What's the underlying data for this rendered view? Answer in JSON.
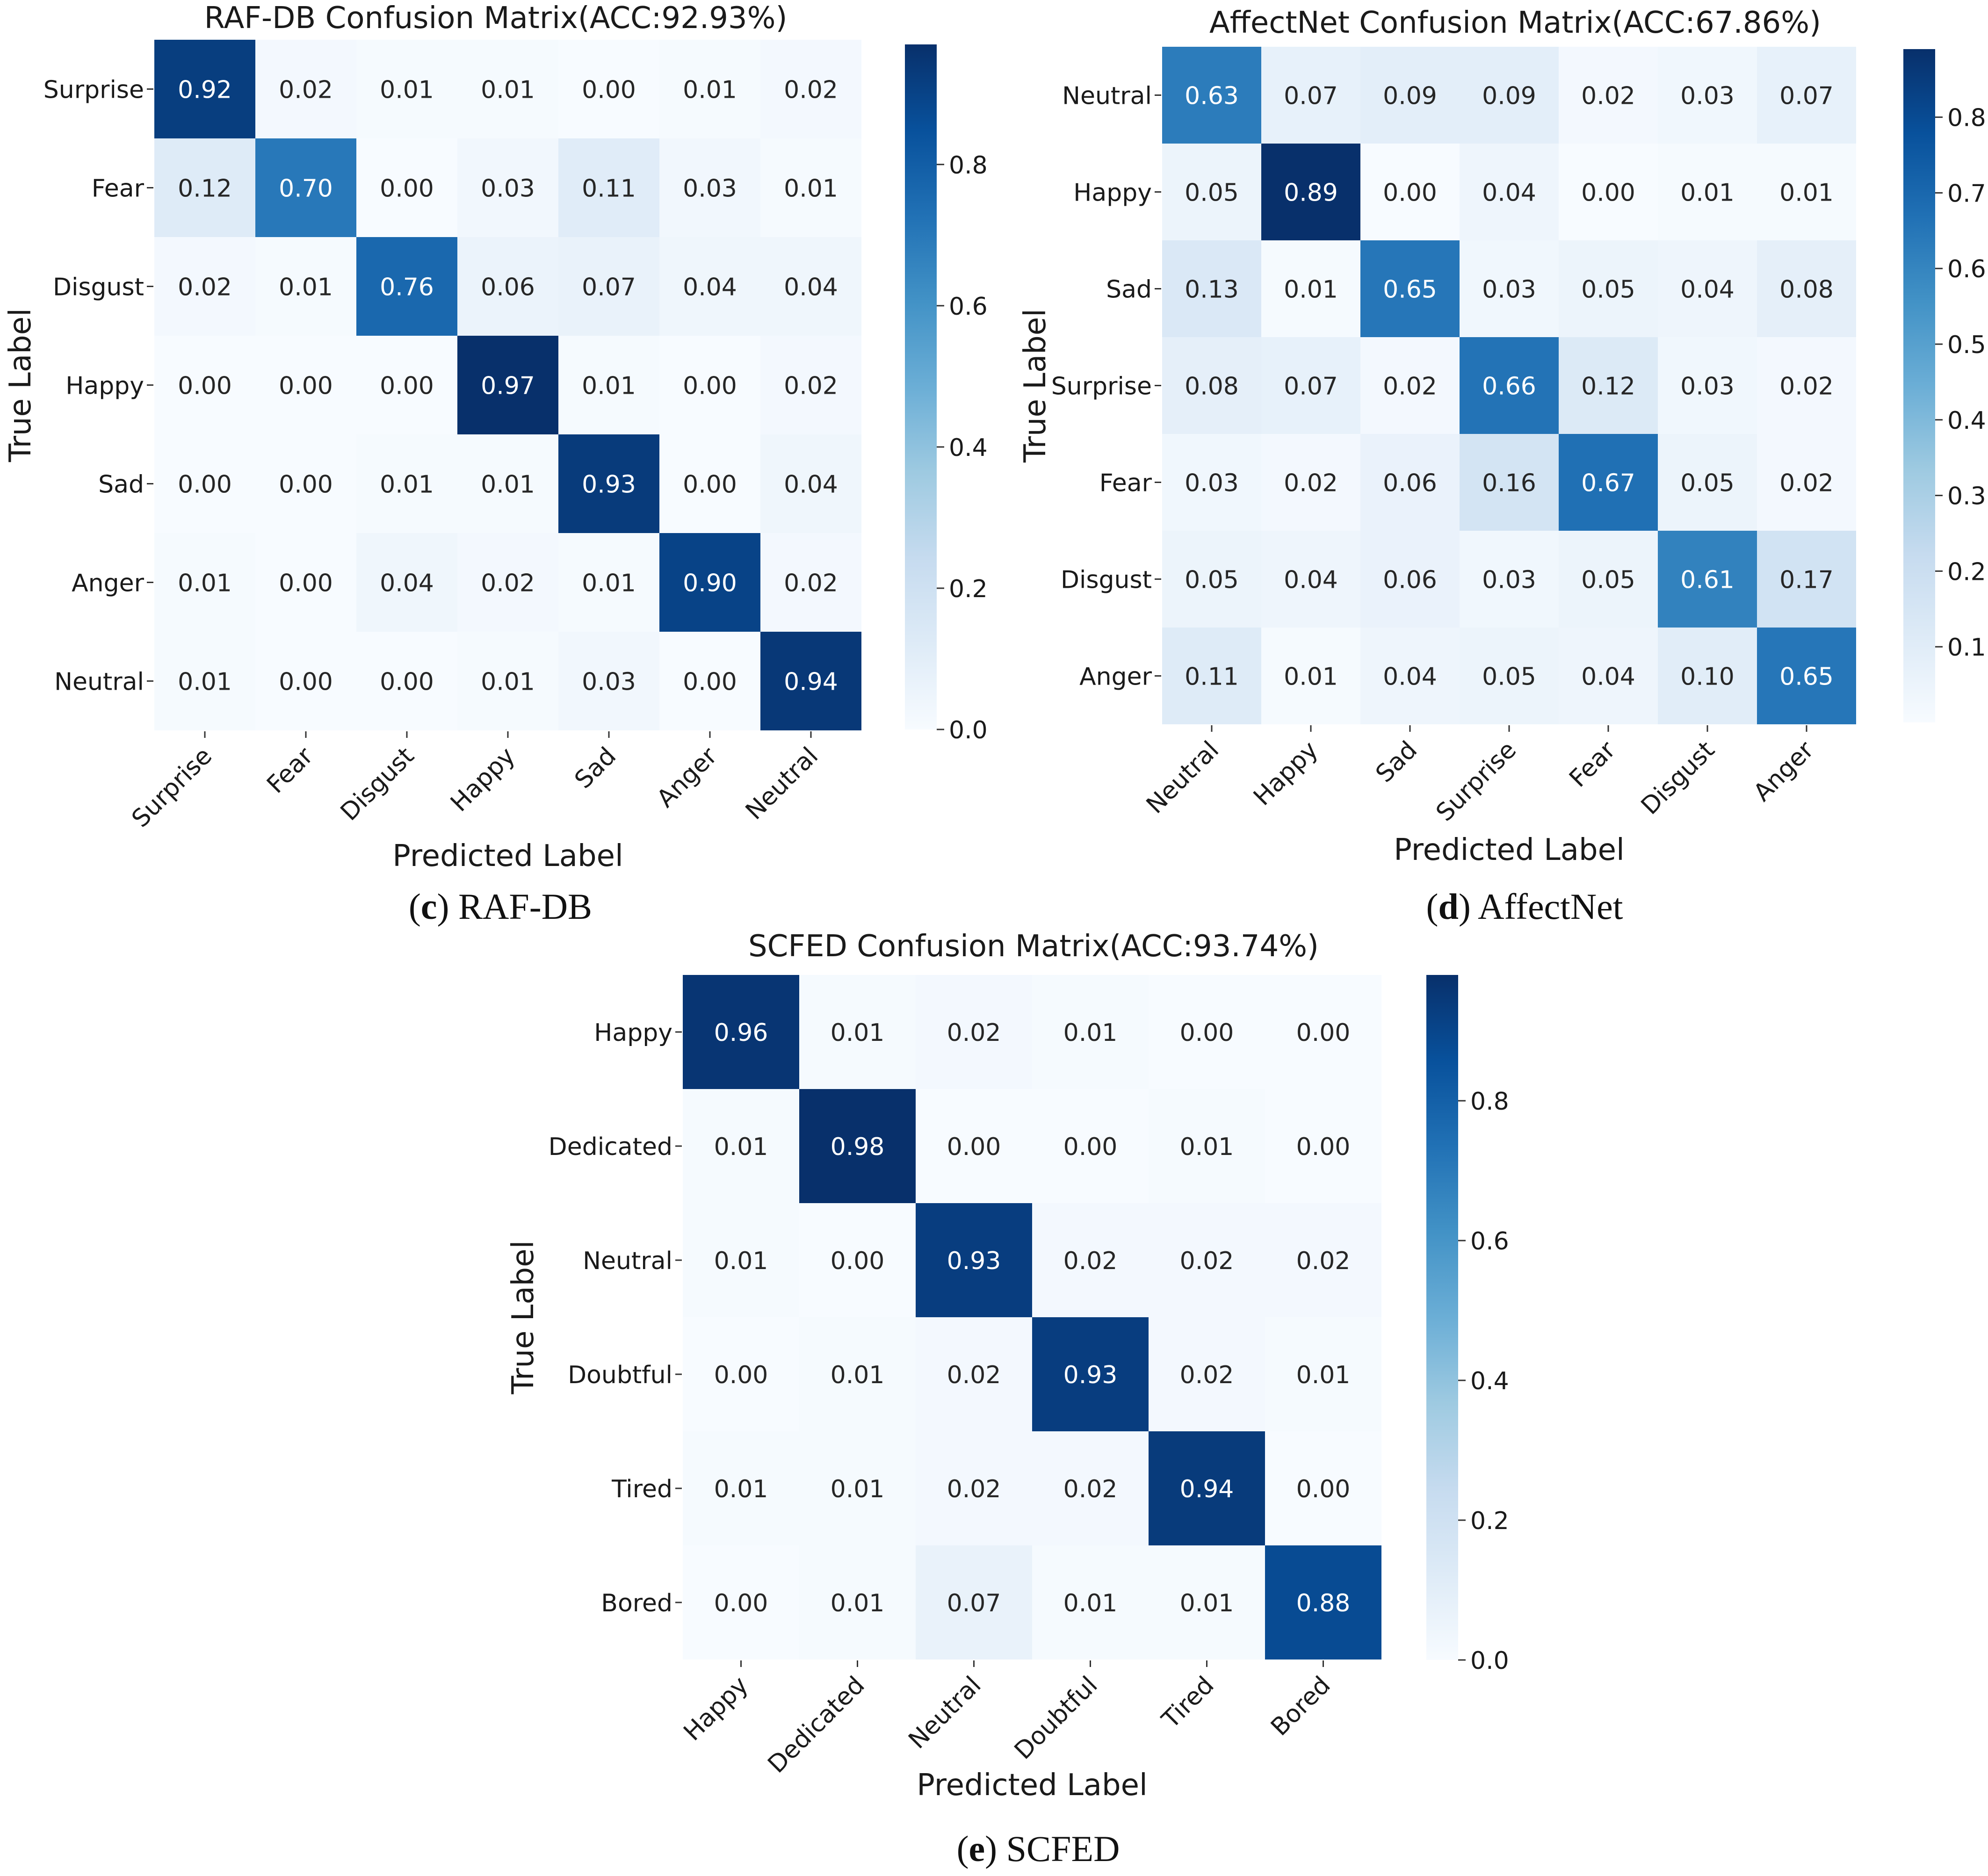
{
  "chart_data": [
    {
      "type": "heatmap",
      "title": "RAF-DB Confusion Matrix(ACC:92.93%)",
      "xlabel": "Predicted Label",
      "ylabel": "True Label",
      "caption_letter": "c",
      "caption_text": " RAF-DB",
      "x_categories": [
        "Surprise",
        "Fear",
        "Disgust",
        "Happy",
        "Sad",
        "Anger",
        "Neutral"
      ],
      "y_categories": [
        "Surprise",
        "Fear",
        "Disgust",
        "Happy",
        "Sad",
        "Anger",
        "Neutral"
      ],
      "values": [
        [
          0.92,
          0.02,
          0.01,
          0.01,
          0.0,
          0.01,
          0.02
        ],
        [
          0.12,
          0.7,
          0.0,
          0.03,
          0.11,
          0.03,
          0.01
        ],
        [
          0.02,
          0.01,
          0.76,
          0.06,
          0.07,
          0.04,
          0.04
        ],
        [
          0.0,
          0.0,
          0.0,
          0.97,
          0.01,
          0.0,
          0.02
        ],
        [
          0.0,
          0.0,
          0.01,
          0.01,
          0.93,
          0.0,
          0.04
        ],
        [
          0.01,
          0.0,
          0.04,
          0.02,
          0.01,
          0.9,
          0.02
        ],
        [
          0.01,
          0.0,
          0.0,
          0.01,
          0.03,
          0.0,
          0.94
        ]
      ],
      "colorbar": {
        "range": [
          0.0,
          0.97
        ],
        "ticks": [
          0.0,
          0.2,
          0.4,
          0.6,
          0.8
        ],
        "tick_labels": [
          "0.0",
          "0.2",
          "0.4",
          "0.6",
          "0.8"
        ]
      },
      "colormap": "Blues"
    },
    {
      "type": "heatmap",
      "title": "AffectNet Confusion Matrix(ACC:67.86%)",
      "xlabel": "Predicted Label",
      "ylabel": "True Label",
      "caption_letter": "d",
      "caption_text": " AffectNet",
      "x_categories": [
        "Neutral",
        "Happy",
        "Sad",
        "Surprise",
        "Fear",
        "Disgust",
        "Anger"
      ],
      "y_categories": [
        "Neutral",
        "Happy",
        "Sad",
        "Surprise",
        "Fear",
        "Disgust",
        "Anger"
      ],
      "values": [
        [
          0.63,
          0.07,
          0.09,
          0.09,
          0.02,
          0.03,
          0.07
        ],
        [
          0.05,
          0.89,
          0.0,
          0.04,
          0.0,
          0.01,
          0.01
        ],
        [
          0.13,
          0.01,
          0.65,
          0.03,
          0.05,
          0.04,
          0.08
        ],
        [
          0.08,
          0.07,
          0.02,
          0.66,
          0.12,
          0.03,
          0.02
        ],
        [
          0.03,
          0.02,
          0.06,
          0.16,
          0.67,
          0.05,
          0.02
        ],
        [
          0.05,
          0.04,
          0.06,
          0.03,
          0.05,
          0.61,
          0.17
        ],
        [
          0.11,
          0.01,
          0.04,
          0.05,
          0.04,
          0.1,
          0.65
        ]
      ],
      "colorbar": {
        "range": [
          0.0,
          0.89
        ],
        "ticks": [
          0.1,
          0.2,
          0.3,
          0.4,
          0.5,
          0.6,
          0.7,
          0.8
        ],
        "tick_labels": [
          "0.1",
          "0.2",
          "0.3",
          "0.4",
          "0.5",
          "0.6",
          "0.7",
          "0.8"
        ]
      },
      "colormap": "Blues"
    },
    {
      "type": "heatmap",
      "title": "SCFED Confusion Matrix(ACC:93.74%)",
      "xlabel": "Predicted Label",
      "ylabel": "True Label",
      "caption_letter": "e",
      "caption_text": " SCFED",
      "x_categories": [
        "Happy",
        "Dedicated",
        "Neutral",
        "Doubtful",
        "Tired",
        "Bored"
      ],
      "y_categories": [
        "Happy",
        "Dedicated",
        "Neutral",
        "Doubtful",
        "Tired",
        "Bored"
      ],
      "values": [
        [
          0.96,
          0.01,
          0.02,
          0.01,
          0.0,
          0.0
        ],
        [
          0.01,
          0.98,
          0.0,
          0.0,
          0.01,
          0.0
        ],
        [
          0.01,
          0.0,
          0.93,
          0.02,
          0.02,
          0.02
        ],
        [
          0.0,
          0.01,
          0.02,
          0.93,
          0.02,
          0.01
        ],
        [
          0.01,
          0.01,
          0.02,
          0.02,
          0.94,
          0.0
        ],
        [
          0.0,
          0.01,
          0.07,
          0.01,
          0.01,
          0.88
        ]
      ],
      "colorbar": {
        "range": [
          0.0,
          0.98
        ],
        "ticks": [
          0.0,
          0.2,
          0.4,
          0.6,
          0.8
        ],
        "tick_labels": [
          "0.0",
          "0.2",
          "0.4",
          "0.6",
          "0.8"
        ]
      },
      "colormap": "Blues"
    }
  ]
}
